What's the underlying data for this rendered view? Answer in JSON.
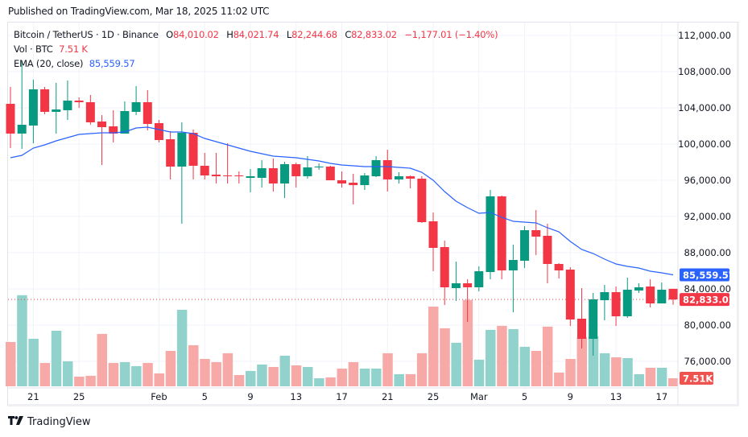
{
  "header": {
    "published": "Published on TradingView.com, Mar 18, 2025 11:02 UTC"
  },
  "legend": {
    "symbol": "Bitcoin / TetherUS · 1D · Binance",
    "open_label": "O",
    "open": "84,010.02",
    "high_label": "H",
    "high": "84,021.74",
    "low_label": "L",
    "low": "82,244.68",
    "close_label": "C",
    "close": "82,833.02",
    "change": "−1,177.01 (−1.40%)",
    "volume_label": "Vol · BTC",
    "volume": "7.51 K",
    "ema_label": "EMA (20, close)",
    "ema": "85,559.57"
  },
  "footer": {
    "brand": "TradingView",
    "logo_icon": "tradingview-logo-icon"
  },
  "colors": {
    "up": "#089981",
    "down": "#f23645",
    "up_volume": "#92d2cc",
    "down_volume": "#f7a9a7",
    "ema": "#2962ff",
    "grid": "#f0f3fa",
    "axis_text": "#131722"
  },
  "chart_data": {
    "type": "candlestick",
    "title": "Bitcoin / TetherUS · 1D · Binance",
    "xlabel": "",
    "ylabel": "",
    "ylim": [
      73500,
      114500
    ],
    "grid": true,
    "legend_position": "top-left",
    "y_ticks": [
      112000,
      108000,
      104000,
      100000,
      96000,
      92000,
      88000,
      84000,
      80000,
      76000
    ],
    "y_tick_labels": [
      "112,000.00",
      "108,000.00",
      "104,000.00",
      "100,000.00",
      "96,000.00",
      "92,000.00",
      "88,000.00",
      "84,000.00",
      "80,000.00",
      "76,000.00"
    ],
    "x_ticks": [
      {
        "index": 2,
        "label": "21"
      },
      {
        "index": 6,
        "label": "25"
      },
      {
        "index": 13,
        "label": "Feb"
      },
      {
        "index": 17,
        "label": "5"
      },
      {
        "index": 21,
        "label": "9"
      },
      {
        "index": 25,
        "label": "13"
      },
      {
        "index": 29,
        "label": "17"
      },
      {
        "index": 33,
        "label": "21"
      },
      {
        "index": 37,
        "label": "25"
      },
      {
        "index": 41,
        "label": "Mar"
      },
      {
        "index": 45,
        "label": "5"
      },
      {
        "index": 49,
        "label": "9"
      },
      {
        "index": 53,
        "label": "13"
      },
      {
        "index": 57,
        "label": "17"
      }
    ],
    "dates": [
      "Jan 19",
      "Jan 20",
      "Jan 21",
      "Jan 22",
      "Jan 23",
      "Jan 24",
      "Jan 25",
      "Jan 26",
      "Jan 27",
      "Jan 28",
      "Jan 29",
      "Jan 30",
      "Jan 31",
      "Feb 1",
      "Feb 2",
      "Feb 3",
      "Feb 4",
      "Feb 5",
      "Feb 6",
      "Feb 7",
      "Feb 8",
      "Feb 9",
      "Feb 10",
      "Feb 11",
      "Feb 12",
      "Feb 13",
      "Feb 14",
      "Feb 15",
      "Feb 16",
      "Feb 17",
      "Feb 18",
      "Feb 19",
      "Feb 20",
      "Feb 21",
      "Feb 22",
      "Feb 23",
      "Feb 24",
      "Feb 25",
      "Feb 26",
      "Feb 27",
      "Feb 28",
      "Mar 1",
      "Mar 2",
      "Mar 3",
      "Mar 4",
      "Mar 5",
      "Mar 6",
      "Mar 7",
      "Mar 8",
      "Mar 9",
      "Mar 10",
      "Mar 11",
      "Mar 12",
      "Mar 13",
      "Mar 14",
      "Mar 15",
      "Mar 16",
      "Mar 17",
      "Mar 18"
    ],
    "ohlc": [
      [
        104444,
        106311,
        99556,
        101156
      ],
      [
        101156,
        109244,
        99467,
        102133
      ],
      [
        102044,
        107111,
        100089,
        106044
      ],
      [
        106044,
        106311,
        103289,
        103556
      ],
      [
        103556,
        106756,
        101156,
        103822
      ],
      [
        103733,
        107022,
        102667,
        104800
      ],
      [
        104800,
        105156,
        104000,
        104622
      ],
      [
        104622,
        105422,
        102133,
        102400
      ],
      [
        102489,
        103200,
        97689,
        101867
      ],
      [
        101956,
        103733,
        100178,
        101156
      ],
      [
        101156,
        104711,
        101156,
        103644
      ],
      [
        103556,
        106400,
        103200,
        104622
      ],
      [
        104622,
        105956,
        101511,
        102222
      ],
      [
        102311,
        102667,
        100178,
        100444
      ],
      [
        100533,
        101422,
        96089,
        97511
      ],
      [
        97511,
        102400,
        91200,
        101244
      ],
      [
        101244,
        101600,
        96089,
        97600
      ],
      [
        97600,
        99022,
        96089,
        96533
      ],
      [
        96622,
        99022,
        95644,
        96444
      ],
      [
        96533,
        100089,
        95644,
        96444
      ],
      [
        96533,
        96978,
        95644,
        96444
      ],
      [
        96267,
        97244,
        94667,
        96444
      ],
      [
        96267,
        98222,
        95200,
        97333
      ],
      [
        97333,
        98400,
        94756,
        95644
      ],
      [
        95644,
        98044,
        94044,
        97778
      ],
      [
        97778,
        97956,
        95200,
        96444
      ],
      [
        96444,
        98667,
        96178,
        97422
      ],
      [
        97422,
        97867,
        97156,
        97511
      ],
      [
        97511,
        97600,
        96000,
        96000
      ],
      [
        96000,
        96978,
        95200,
        95644
      ],
      [
        95733,
        96711,
        93333,
        95467
      ],
      [
        95467,
        96800,
        94933,
        96533
      ],
      [
        96444,
        98667,
        96356,
        98222
      ],
      [
        98222,
        99378,
        94756,
        96089
      ],
      [
        96089,
        96889,
        95644,
        96444
      ],
      [
        96444,
        96533,
        95111,
        96178
      ],
      [
        96178,
        96444,
        91289,
        91378
      ],
      [
        91467,
        92444,
        85956,
        88533
      ],
      [
        88622,
        89333,
        82222,
        84178
      ],
      [
        84089,
        87022,
        82667,
        84622
      ],
      [
        84622,
        85067,
        80356,
        84178
      ],
      [
        84178,
        86489,
        83733,
        85956
      ],
      [
        85867,
        94933,
        85067,
        94222
      ],
      [
        94222,
        94311,
        85067,
        86044
      ],
      [
        86044,
        88889,
        81422,
        87200
      ],
      [
        87111,
        90933,
        86311,
        90489
      ],
      [
        90489,
        92711,
        87733,
        89778
      ],
      [
        89867,
        91200,
        84622,
        86756
      ],
      [
        86756,
        86844,
        85156,
        86044
      ],
      [
        86133,
        86400,
        79911,
        80622
      ],
      [
        80711,
        84089,
        77422,
        78489
      ],
      [
        78489,
        83556,
        76622,
        82844
      ],
      [
        82756,
        84444,
        80533,
        83644
      ],
      [
        83644,
        84267,
        79911,
        80978
      ],
      [
        80978,
        85244,
        80800,
        83911
      ],
      [
        83822,
        84622,
        83556,
        84178
      ],
      [
        84267,
        85067,
        81956,
        82400
      ],
      [
        82400,
        84711,
        82400,
        83911
      ],
      [
        84010.02,
        84021.74,
        82244.68,
        82833.02
      ]
    ],
    "volume_k": [
      41.3,
      84.9,
      44.3,
      21.8,
      51.8,
      23.3,
      9.0,
      9.8,
      48.8,
      21.8,
      22.5,
      18.8,
      21.8,
      12.0,
      33.0,
      71.3,
      38.3,
      25.5,
      22.5,
      30.8,
      10.5,
      14.3,
      20.3,
      18.0,
      28.5,
      19.5,
      18.0,
      7.5,
      8.3,
      16.5,
      22.5,
      16.5,
      16.5,
      30.8,
      11.3,
      11.3,
      30.8,
      74.3,
      54.1,
      40.6,
      80.4,
      24.8,
      52.6,
      56.3,
      53.3,
      36.8,
      33.0,
      55.6,
      12.8,
      25.5,
      45.8,
      46.6,
      30.8,
      27.0,
      26.3,
      11.3,
      17.3,
      17.3,
      7.51
    ],
    "volume_max_k": 120,
    "ema20": [
      98489,
      98756,
      99556,
      99911,
      100356,
      100711,
      101067,
      101156,
      101244,
      101244,
      101333,
      101778,
      101867,
      101600,
      101333,
      101333,
      101156,
      100622,
      100267,
      99911,
      99556,
      99200,
      98933,
      98667,
      98578,
      98489,
      98311,
      98133,
      97867,
      97689,
      97600,
      97511,
      97511,
      97511,
      97422,
      97333,
      96889,
      96000,
      94756,
      93689,
      92978,
      92356,
      92444,
      91911,
      91467,
      91378,
      91289,
      90756,
      90311,
      89244,
      88356,
      87911,
      87289,
      86756,
      86489,
      86311,
      85956,
      85778,
      85559.57
    ],
    "last_price": 82833.02,
    "last_price_label": "82,833.02",
    "ema_last": 85559.57,
    "ema_last_label": "85,559.57",
    "volume_last_label": "7.51K"
  }
}
